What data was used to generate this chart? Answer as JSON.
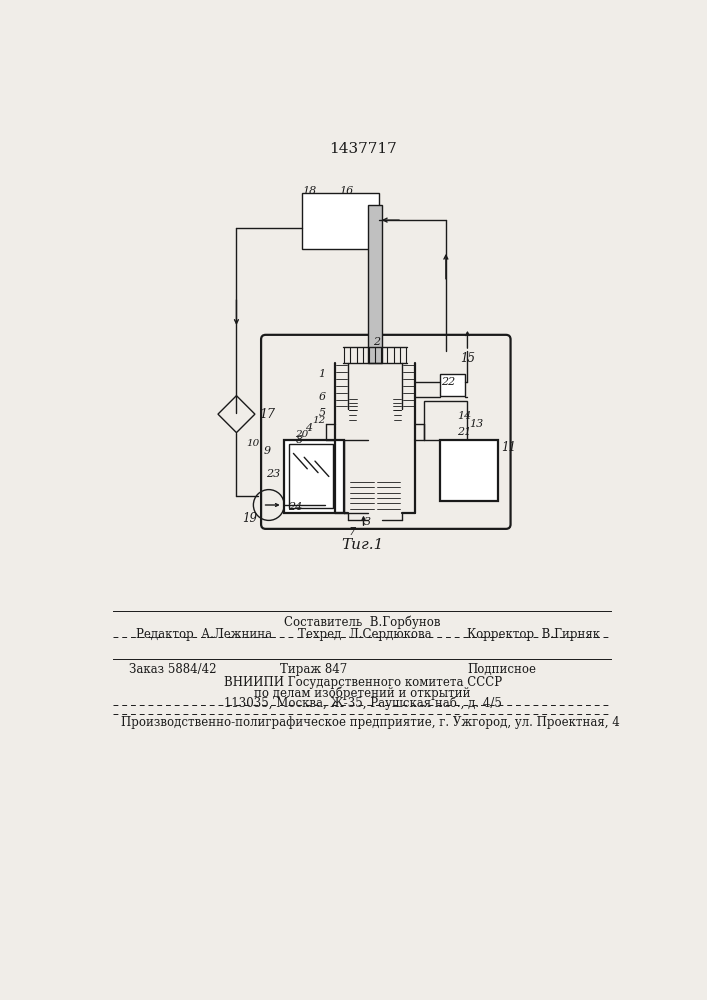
{
  "patent_number": "1437717",
  "fig_label": "Τиг.1",
  "bg": "#f0ede8",
  "lc": "#1a1a1a",
  "footer": {
    "sestavitel": "Составитель  В.Горбунов",
    "redaktor": "Редактор  А.Лежнина",
    "tehred": "Техред  Л.Сердюкова",
    "korrektor": "Корректор  В.Гирняк",
    "zakaz": "Заказ 5884/42",
    "tirazh": "Тираж 847",
    "podpisnoe": "Подписное",
    "vniipи": "ВНИИПИ Государственного комитета СССР",
    "po_delam": "по делам изобретений и открытий",
    "address": "113035, Москва, Ж-35, Раушская наб., д. 4/5",
    "predpriyatie": "Производственно-полиграфическое предприятие, г. Ужгород, ул. Проектная, 4"
  }
}
